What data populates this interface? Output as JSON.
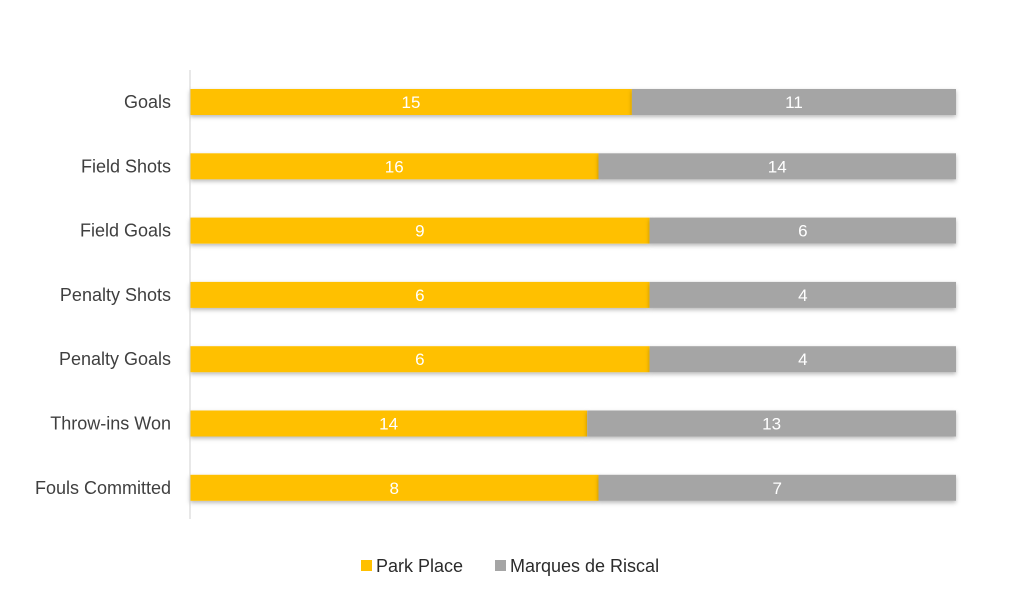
{
  "chart_data": {
    "type": "bar",
    "orientation": "horizontal",
    "stacking": "100% stacked",
    "categories": [
      "Goals",
      "Field Shots",
      "Field Goals",
      "Penalty Shots",
      "Penalty Goals",
      "Throw-ins Won",
      "Fouls Committed"
    ],
    "series": [
      {
        "name": "Park Place",
        "color": "#FFC000",
        "values": [
          15,
          16,
          9,
          6,
          6,
          14,
          8
        ]
      },
      {
        "name": "Marques de Riscal",
        "color": "#A5A5A5",
        "values": [
          11,
          14,
          6,
          4,
          4,
          13,
          7
        ]
      }
    ],
    "title": "",
    "xlabel": "",
    "ylabel": "",
    "grid": false,
    "data_labels": true,
    "legend_position": "bottom"
  }
}
